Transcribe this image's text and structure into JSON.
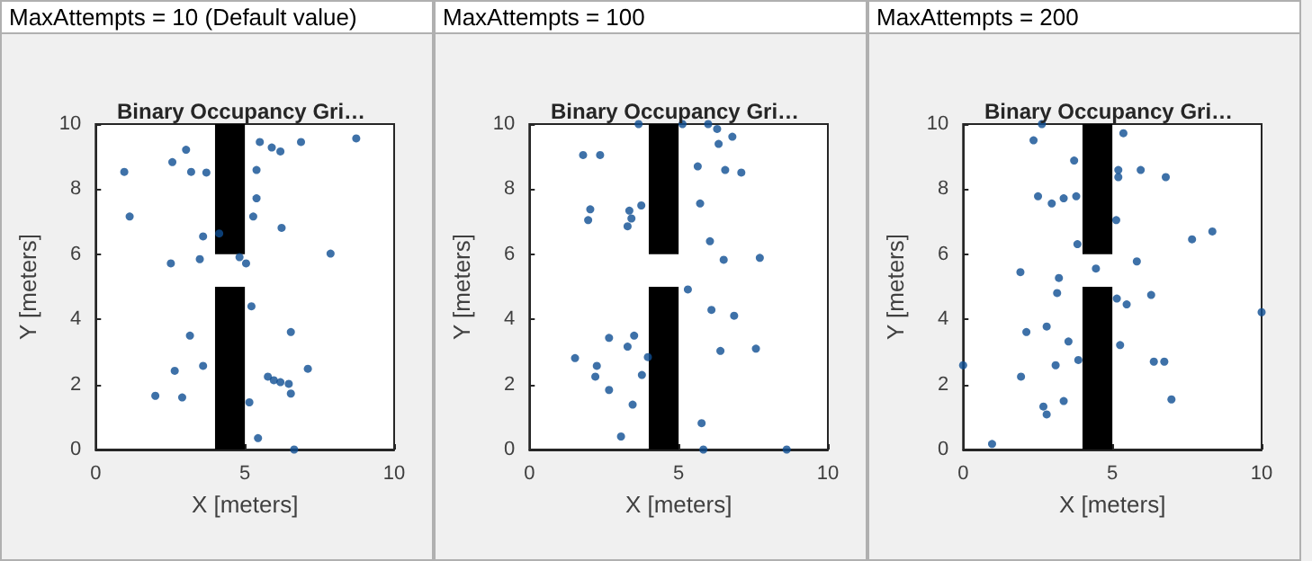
{
  "chart_data": [
    {
      "type": "scatter",
      "title": "MaxAttempts = 10 (Default value)",
      "subtitle": "Binary Occupancy Gri…",
      "xlabel": "X [meters]",
      "ylabel": "Y [meters]",
      "xlim": [
        0,
        10
      ],
      "xticks": [
        0,
        5,
        10
      ],
      "ylim": [
        0,
        10
      ],
      "yticks": [
        0,
        2,
        4,
        6,
        8,
        10
      ],
      "grid": false,
      "marker": "circle",
      "series": [
        {
          "type": "bar",
          "color": "#000000",
          "x": [
            4.5,
            4.5
          ],
          "base": [
            0,
            6
          ],
          "values": [
            5,
            4
          ]
        },
        {
          "color": "#0e4d92",
          "x": [
            0.96,
            1.14,
            2.57,
            3.03,
            3.2,
            3.71,
            3.6,
            4.14,
            3.49,
            2.52,
            4.82,
            5.04,
            5.5,
            5.39,
            5.39,
            5.28,
            5.9,
            6.19,
            6.88,
            8.73,
            6.23,
            7.87,
            5.22,
            3.16,
            6.54,
            2.65,
            3.6,
            7.11,
            5.77,
            5.97,
            6.19,
            6.47,
            6.54,
            2,
            2.9,
            5.15,
            5.44,
            6.65
          ],
          "values": [
            8.53,
            7.16,
            8.83,
            9.21,
            8.53,
            8.51,
            6.55,
            6.64,
            5.85,
            5.72,
            5.91,
            5.72,
            9.45,
            8.59,
            7.72,
            7.16,
            9.28,
            9.16,
            9.45,
            9.56,
            6.81,
            6.02,
            4.4,
            3.5,
            3.61,
            2.42,
            2.57,
            2.48,
            2.24,
            2.13,
            2.07,
            2.02,
            1.72,
            1.65,
            1.6,
            1.45,
            0.35,
            0
          ]
        }
      ]
    },
    {
      "type": "scatter",
      "title": "MaxAttempts = 100",
      "subtitle": "Binary Occupancy Gri…",
      "xlabel": "X [meters]",
      "ylabel": "Y [meters]",
      "xlim": [
        0,
        10
      ],
      "xticks": [
        0,
        5,
        10
      ],
      "ylim": [
        0,
        10
      ],
      "yticks": [
        0,
        2,
        4,
        6,
        8,
        10
      ],
      "grid": false,
      "marker": "circle",
      "series": [
        {
          "type": "bar",
          "color": "#000000",
          "x": [
            4.5,
            4.5
          ],
          "base": [
            0,
            6
          ],
          "values": [
            5,
            4
          ]
        },
        {
          "color": "#0e4d92",
          "x": [
            3.66,
            5.13,
            5.99,
            6.29,
            6.8,
            6.34,
            1.8,
            2.37,
            5.64,
            6.56,
            7.1,
            2.04,
            1.97,
            3.35,
            3.42,
            3.29,
            3.75,
            5.72,
            6.05,
            6.51,
            7.72,
            5.31,
            6.1,
            6.86,
            2.67,
            3.51,
            3.29,
            6.4,
            7.59,
            3.97,
            1.53,
            2.26,
            2.21,
            3.77,
            2.67,
            3.46,
            3.07,
            5.77,
            5.83,
            8.62
          ],
          "values": [
            10,
            10,
            10,
            9.85,
            9.61,
            9.39,
            9.05,
            9.05,
            8.7,
            8.59,
            8.51,
            7.38,
            7.05,
            7.34,
            7.1,
            6.86,
            7.5,
            7.56,
            6.4,
            5.83,
            5.89,
            4.92,
            4.29,
            4.11,
            3.43,
            3.5,
            3.16,
            3.03,
            3.1,
            2.84,
            2.81,
            2.57,
            2.24,
            2.29,
            1.83,
            1.38,
            0.4,
            0.81,
            0,
            0
          ]
        }
      ]
    },
    {
      "type": "scatter",
      "title": "MaxAttempts = 200",
      "subtitle": "Binary Occupancy Gri…",
      "xlabel": "X [meters]",
      "ylabel": "Y [meters]",
      "xlim": [
        0,
        10
      ],
      "xticks": [
        0,
        5,
        10
      ],
      "ylim": [
        0,
        10
      ],
      "yticks": [
        0,
        2,
        4,
        6,
        8,
        10
      ],
      "grid": false,
      "marker": "circle",
      "series": [
        {
          "type": "bar",
          "color": "#000000",
          "x": [
            4.5,
            4.5
          ],
          "base": [
            0,
            6
          ],
          "values": [
            5,
            4
          ]
        },
        {
          "color": "#0e4d92",
          "x": [
            2.64,
            2.36,
            5.37,
            3.72,
            5.2,
            5.2,
            5.95,
            6.79,
            2.51,
            2.97,
            3.37,
            3.79,
            5.13,
            3.83,
            7.67,
            8.35,
            1.92,
            4.45,
            5.82,
            3.21,
            3.15,
            5.15,
            5.48,
            6.3,
            10,
            2.12,
            2.8,
            3.53,
            5.26,
            3.86,
            3.1,
            6.39,
            6.74,
            0,
            1.94,
            3.37,
            6.98,
            2.69,
            2.8,
            0.97
          ],
          "values": [
            10,
            9.5,
            9.72,
            8.88,
            8.59,
            8.37,
            8.59,
            8.37,
            7.78,
            7.56,
            7.72,
            7.78,
            7.05,
            6.31,
            6.46,
            6.7,
            5.45,
            5.56,
            5.78,
            5.27,
            4.81,
            4.64,
            4.46,
            4.75,
            4.22,
            3.61,
            3.78,
            3.32,
            3.21,
            2.75,
            2.59,
            2.7,
            2.7,
            2.59,
            2.24,
            1.49,
            1.54,
            1.32,
            1.08,
            0.17
          ]
        }
      ]
    }
  ]
}
